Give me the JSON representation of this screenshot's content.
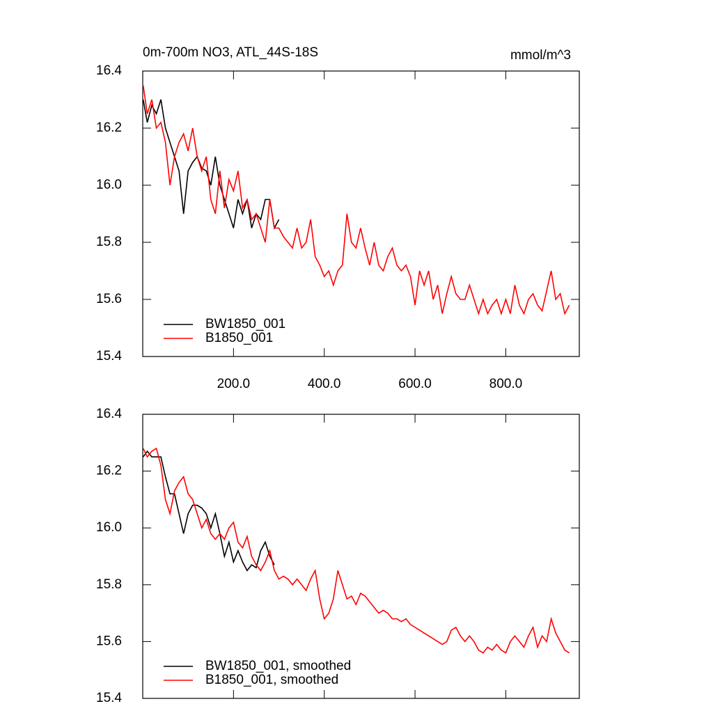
{
  "chart_data": [
    {
      "type": "line",
      "title": "0m-700m NO3, ATL_44S-18S",
      "units": "mmol/m^3",
      "xlim": [
        0,
        962
      ],
      "ylim": [
        15.4,
        16.4
      ],
      "xticks": [
        {
          "value": 200,
          "label": "200.0"
        },
        {
          "value": 400,
          "label": "400.0"
        },
        {
          "value": 600,
          "label": "600.0"
        },
        {
          "value": 800,
          "label": "800.0"
        }
      ],
      "yticks": [
        15.4,
        15.6,
        15.8,
        {
          "value": 16,
          "label": "16.0"
        },
        16.2,
        16.4
      ],
      "legend": "lower left",
      "x": [
        1,
        10,
        20,
        30,
        40,
        50,
        60,
        70,
        80,
        90,
        100,
        110,
        120,
        130,
        140,
        150,
        160,
        170,
        180,
        190,
        200,
        210,
        220,
        230,
        240,
        250,
        260,
        270,
        280,
        290,
        300,
        310,
        320,
        330,
        340,
        350,
        360,
        370,
        380,
        390,
        400,
        410,
        420,
        430,
        440,
        450,
        460,
        470,
        480,
        490,
        500,
        510,
        520,
        530,
        540,
        550,
        560,
        570,
        580,
        590,
        600,
        610,
        620,
        630,
        640,
        650,
        660,
        670,
        680,
        690,
        700,
        710,
        720,
        730,
        740,
        750,
        760,
        770,
        780,
        790,
        800,
        810,
        820,
        830,
        840,
        850,
        860,
        870,
        880,
        890,
        900,
        910,
        920,
        930,
        940
      ],
      "series": [
        {
          "name": "BW1850_001",
          "color": "#000000",
          "values": [
            16.3,
            16.22,
            16.28,
            16.25,
            16.3,
            16.2,
            16.15,
            16.1,
            16.05,
            15.9,
            16.05,
            16.08,
            16.1,
            16.06,
            16.05,
            16.0,
            16.1,
            16.0,
            15.95,
            15.9,
            15.85,
            15.95,
            15.9,
            15.95,
            15.85,
            15.9,
            15.88,
            15.95,
            15.95,
            15.85,
            15.88,
            null,
            null,
            null,
            null,
            null,
            null,
            null,
            null,
            null,
            null,
            null,
            null,
            null,
            null,
            null,
            null,
            null,
            null,
            null,
            null,
            null,
            null,
            null,
            null,
            null,
            null,
            null,
            null,
            null,
            null,
            null,
            null,
            null,
            null,
            null,
            null,
            null,
            null,
            null,
            null,
            null,
            null,
            null,
            null,
            null,
            null,
            null,
            null,
            null,
            null,
            null,
            null,
            null,
            null,
            null,
            null,
            null,
            null,
            null,
            null,
            null,
            null,
            null,
            null
          ]
        },
        {
          "name": "B1850_001",
          "color": "#ff0000",
          "values": [
            16.35,
            16.25,
            16.3,
            16.2,
            16.22,
            16.15,
            16.0,
            16.1,
            16.15,
            16.18,
            16.12,
            16.2,
            16.1,
            16.05,
            16.1,
            15.95,
            15.9,
            16.05,
            15.92,
            16.02,
            15.98,
            16.05,
            15.92,
            15.95,
            15.88,
            15.9,
            15.85,
            15.8,
            15.95,
            15.85,
            15.85,
            15.82,
            15.8,
            15.78,
            15.85,
            15.78,
            15.8,
            15.88,
            15.75,
            15.72,
            15.68,
            15.7,
            15.65,
            15.7,
            15.72,
            15.9,
            15.8,
            15.78,
            15.85,
            15.78,
            15.72,
            15.8,
            15.72,
            15.7,
            15.75,
            15.78,
            15.72,
            15.7,
            15.72,
            15.68,
            15.58,
            15.7,
            15.65,
            15.7,
            15.6,
            15.65,
            15.55,
            15.62,
            15.68,
            15.62,
            15.6,
            15.6,
            15.65,
            15.6,
            15.55,
            15.6,
            15.55,
            15.58,
            15.6,
            15.55,
            15.6,
            15.55,
            15.65,
            15.58,
            15.55,
            15.6,
            15.62,
            15.58,
            15.56,
            15.63,
            15.7,
            15.6,
            15.62,
            15.55,
            15.58
          ]
        }
      ]
    },
    {
      "type": "line",
      "xlim": [
        0,
        962
      ],
      "ylim": [
        15.4,
        16.4
      ],
      "yticks": [
        15.4,
        15.6,
        15.8,
        {
          "value": 16,
          "label": "16.0"
        },
        16.2,
        16.4
      ],
      "legend": "lower left",
      "x": [
        1,
        10,
        20,
        30,
        40,
        50,
        60,
        70,
        80,
        90,
        100,
        110,
        120,
        130,
        140,
        150,
        160,
        170,
        180,
        190,
        200,
        210,
        220,
        230,
        240,
        250,
        260,
        270,
        280,
        290,
        300,
        310,
        320,
        330,
        340,
        350,
        360,
        370,
        380,
        390,
        400,
        410,
        420,
        430,
        440,
        450,
        460,
        470,
        480,
        490,
        500,
        510,
        520,
        530,
        540,
        550,
        560,
        570,
        580,
        590,
        600,
        610,
        620,
        630,
        640,
        650,
        660,
        670,
        680,
        690,
        700,
        710,
        720,
        730,
        740,
        750,
        760,
        770,
        780,
        790,
        800,
        810,
        820,
        830,
        840,
        850,
        860,
        870,
        880,
        890,
        900,
        910,
        920,
        930,
        940
      ],
      "series": [
        {
          "name": "BW1850_001, smoothed",
          "color": "#000000",
          "values": [
            16.25,
            16.27,
            16.25,
            16.25,
            16.25,
            16.18,
            16.12,
            16.12,
            16.05,
            15.98,
            16.05,
            16.08,
            16.08,
            16.07,
            16.05,
            16.0,
            16.05,
            15.98,
            15.9,
            15.95,
            15.88,
            15.92,
            15.88,
            15.85,
            15.87,
            15.86,
            15.92,
            15.95,
            15.9,
            15.87,
            null,
            null,
            null,
            null,
            null,
            null,
            null,
            null,
            null,
            null,
            null,
            null,
            null,
            null,
            null,
            null,
            null,
            null,
            null,
            null,
            null,
            null,
            null,
            null,
            null,
            null,
            null,
            null,
            null,
            null,
            null,
            null,
            null,
            null,
            null,
            null,
            null,
            null,
            null,
            null,
            null,
            null,
            null,
            null,
            null,
            null,
            null,
            null,
            null,
            null,
            null,
            null,
            null,
            null,
            null,
            null,
            null,
            null,
            null,
            null,
            null,
            null,
            null,
            null,
            null
          ]
        },
        {
          "name": "B1850_001, smoothed",
          "color": "#ff0000",
          "values": [
            16.28,
            16.25,
            16.27,
            16.28,
            16.22,
            16.1,
            16.05,
            16.13,
            16.16,
            16.18,
            16.12,
            16.1,
            16.05,
            16.0,
            16.03,
            15.98,
            15.96,
            15.98,
            15.96,
            16.0,
            16.02,
            15.95,
            15.93,
            15.97,
            15.9,
            15.87,
            15.85,
            15.88,
            15.92,
            15.85,
            15.82,
            15.83,
            15.82,
            15.8,
            15.82,
            15.8,
            15.78,
            15.82,
            15.85,
            15.75,
            15.68,
            15.7,
            15.75,
            15.85,
            15.8,
            15.75,
            15.76,
            15.73,
            15.77,
            15.76,
            15.74,
            15.72,
            15.7,
            15.71,
            15.7,
            15.68,
            15.68,
            15.67,
            15.68,
            15.66,
            15.65,
            15.64,
            15.63,
            15.62,
            15.61,
            15.6,
            15.59,
            15.6,
            15.64,
            15.65,
            15.62,
            15.6,
            15.62,
            15.6,
            15.57,
            15.56,
            15.58,
            15.57,
            15.59,
            15.57,
            15.56,
            15.6,
            15.62,
            15.6,
            15.58,
            15.62,
            15.65,
            15.58,
            15.62,
            15.6,
            15.68,
            15.63,
            15.6,
            15.57,
            15.56
          ]
        }
      ]
    }
  ]
}
